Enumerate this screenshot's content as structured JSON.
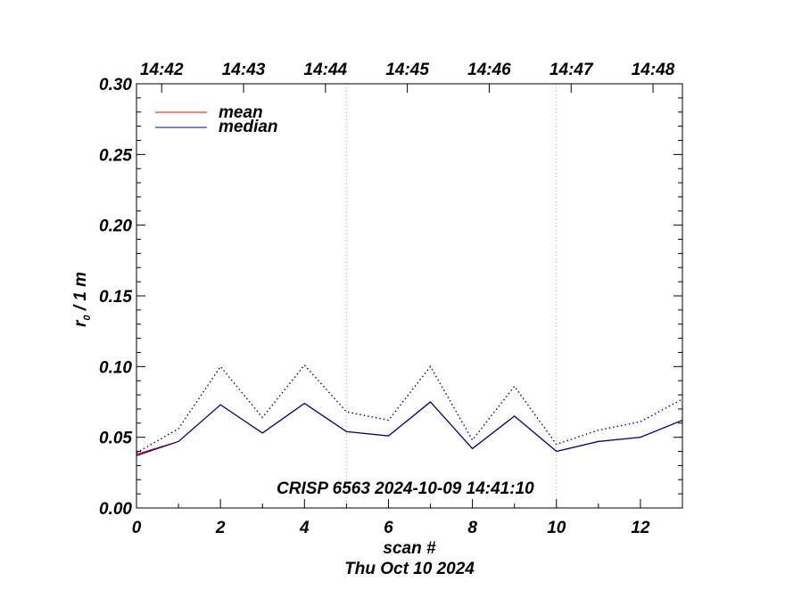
{
  "chart_data": {
    "type": "line",
    "title": "",
    "xlabel": "scan #",
    "xlabel2": "Thu Oct 10 2024",
    "ylabel_main": "r",
    "ylabel_sub": "0",
    "ylabel_rest": " / 1 m",
    "xlim": [
      0,
      13
    ],
    "ylim": [
      0.0,
      0.3
    ],
    "x_ticks": [
      0,
      2,
      4,
      6,
      8,
      10,
      12
    ],
    "x_tick_labels": [
      "0",
      "2",
      "4",
      "6",
      "8",
      "10",
      "12"
    ],
    "y_ticks": [
      0.0,
      0.05,
      0.1,
      0.15,
      0.2,
      0.25,
      0.3
    ],
    "y_tick_labels": [
      "0.00",
      "0.05",
      "0.10",
      "0.15",
      "0.20",
      "0.25",
      "0.30"
    ],
    "top_axis_ticks": [
      0.6,
      2.55,
      4.5,
      6.45,
      8.4,
      10.35,
      12.3
    ],
    "top_axis_labels": [
      "14:42",
      "14:43",
      "14:44",
      "14:45",
      "14:46",
      "14:47",
      "14:48"
    ],
    "vertical_dotted_lines": [
      5,
      10
    ],
    "legend_position": "top-left",
    "series": [
      {
        "name": "mean",
        "color": "#ff0000",
        "style": "solid",
        "x": [
          0,
          1,
          2,
          3,
          4,
          5,
          6,
          7,
          8,
          9,
          10,
          11,
          12,
          13
        ],
        "values": [
          0.038,
          0.047,
          0.073,
          0.053,
          0.074,
          0.054,
          0.051,
          0.075,
          0.042,
          0.065,
          0.04,
          0.047,
          0.05,
          0.062
        ]
      },
      {
        "name": "median",
        "color": "#00008b",
        "style": "solid",
        "x": [
          0,
          1,
          2,
          3,
          4,
          5,
          6,
          7,
          8,
          9,
          10,
          11,
          12,
          13
        ],
        "values": [
          0.037,
          0.047,
          0.073,
          0.053,
          0.074,
          0.054,
          0.051,
          0.075,
          0.042,
          0.065,
          0.04,
          0.047,
          0.05,
          0.062
        ]
      },
      {
        "color": "#00008b",
        "style": "dotted",
        "x": [
          0,
          1,
          2,
          3,
          4,
          5,
          6,
          7,
          8,
          9,
          10,
          11,
          12,
          13
        ],
        "values": [
          0.039,
          0.056,
          0.1,
          0.064,
          0.101,
          0.068,
          0.062,
          0.1,
          0.048,
          0.086,
          0.045,
          0.055,
          0.061,
          0.077
        ]
      }
    ],
    "annotation": "CRISP 6563 2024-10-09 14:41:10"
  }
}
